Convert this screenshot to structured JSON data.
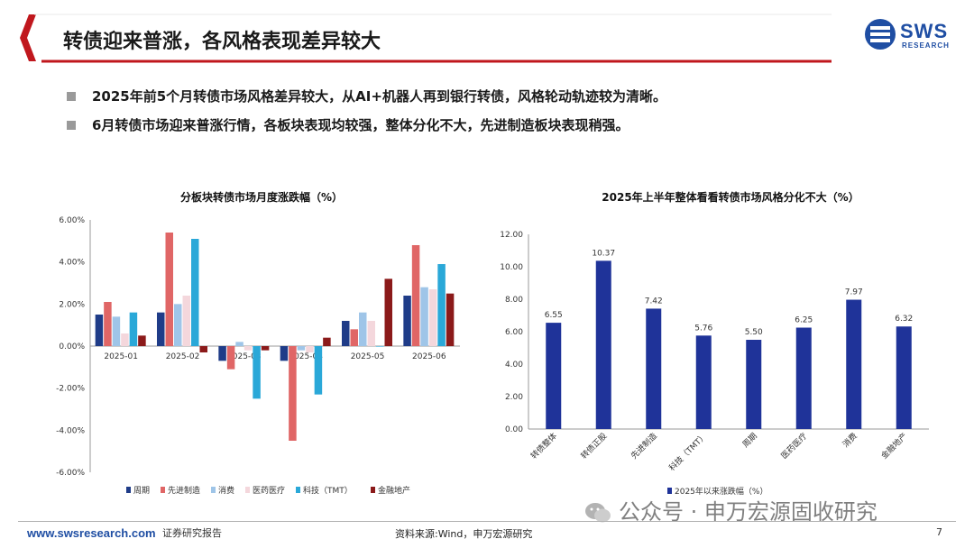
{
  "header": {
    "title": "转债迎来普涨，各风格表现差异较大",
    "logo_text": "SWS",
    "logo_sub": "RESEARCH"
  },
  "bullets": [
    "2025年前5个月转债市场风格差异较大，从AI+机器人再到银行转债，风格轮动轨迹较为清晰。",
    "6月转债市场迎来普涨行情，各板块表现均较强，整体分化不大，先进制造板块表现稍强。"
  ],
  "footer": {
    "url": "www.swsresearch.com",
    "report_type": "证券研究报告",
    "source": "资料来源:Wind，申万宏源研究",
    "page": "7"
  },
  "watermark": "公众号 · 申万宏源固收研究",
  "colors": {
    "accent_red": "#c0171d",
    "logo_blue": "#1f4ea3"
  },
  "chart_data": [
    {
      "type": "bar",
      "title": "分板块转债市场月度涨跌幅（%）",
      "categories": [
        "2025-01",
        "2025-02",
        "2025-03",
        "2025-04",
        "2025-05",
        "2025-06"
      ],
      "series": [
        {
          "name": "周期",
          "color": "#1f3c88",
          "values": [
            1.5,
            1.6,
            -0.7,
            -0.7,
            1.2,
            2.4
          ]
        },
        {
          "name": "先进制造",
          "color": "#e06666",
          "values": [
            2.1,
            5.4,
            -1.1,
            -4.5,
            0.8,
            4.8
          ]
        },
        {
          "name": "消费",
          "color": "#9fc5e8",
          "values": [
            1.4,
            2.0,
            0.2,
            -0.2,
            1.6,
            2.8
          ]
        },
        {
          "name": "医药医疗",
          "color": "#f4d7dc",
          "values": [
            0.6,
            2.4,
            -0.2,
            -0.3,
            1.2,
            2.7
          ]
        },
        {
          "name": "科技（TMT）",
          "color": "#2aa8d8",
          "values": [
            1.6,
            5.1,
            -2.5,
            -2.3,
            0.0,
            3.9
          ]
        },
        {
          "name": "金融地产",
          "color": "#8b1a1a",
          "values": [
            0.5,
            -0.3,
            -0.2,
            0.4,
            3.2,
            2.5
          ]
        }
      ],
      "yticks": [
        "6.00%",
        "4.00%",
        "2.00%",
        "0.00%",
        "-2.00%",
        "-4.00%",
        "-6.00%"
      ],
      "ylim": [
        -6,
        6
      ]
    },
    {
      "type": "bar",
      "title": "2025年上半年整体看看转债市场风格分化不大（%）",
      "categories": [
        "转债整体",
        "转债正股",
        "先进制造",
        "科技（TMT）",
        "周期",
        "医药医疗",
        "消费",
        "金融地产"
      ],
      "series": [
        {
          "name": "2025年以来涨跌幅（%）",
          "color": "#1f3399",
          "values": [
            6.55,
            10.37,
            7.42,
            5.76,
            5.5,
            6.25,
            7.97,
            6.32
          ]
        }
      ],
      "value_labels": [
        "6.55",
        "10.37",
        "7.42",
        "5.76",
        "5.50",
        "6.25",
        "7.97",
        "6.32"
      ],
      "yticks": [
        "12.00",
        "10.00",
        "8.00",
        "6.00",
        "4.00",
        "2.00",
        "0.00"
      ],
      "ylim": [
        0,
        12
      ]
    }
  ]
}
